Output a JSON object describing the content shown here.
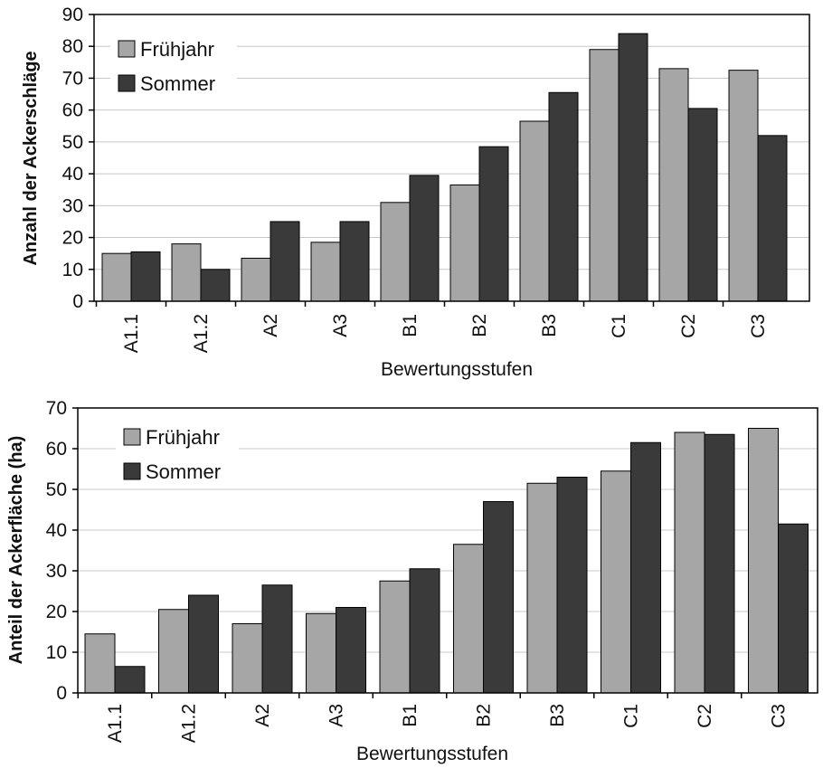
{
  "colors": {
    "fruehjahr": "#a6a6a6",
    "sommer": "#3a3a3a",
    "grid": "#c8c8c8",
    "axis": "#000000"
  },
  "chart_data": [
    {
      "type": "bar",
      "categories": [
        "A1.1",
        "A1.2",
        "A2",
        "A3",
        "B1",
        "B2",
        "B3",
        "C1",
        "C2",
        "C3"
      ],
      "series": [
        {
          "name": "Frühjahr",
          "values": [
            15,
            18,
            13.5,
            18.5,
            31,
            36.5,
            56.5,
            79,
            73,
            72.5
          ]
        },
        {
          "name": "Sommer",
          "values": [
            15.5,
            10,
            25,
            25,
            39.5,
            48.5,
            65.5,
            84,
            60.5,
            52
          ]
        }
      ],
      "xlabel": "Bewertungsstufen",
      "ylabel": "Anzahl der Ackerschläge",
      "ylim": [
        0,
        90
      ],
      "yticks": [
        0,
        10,
        20,
        30,
        40,
        50,
        60,
        70,
        80,
        90
      ],
      "grid": true,
      "legend": "top-left"
    },
    {
      "type": "bar",
      "categories": [
        "A1.1",
        "A1.2",
        "A2",
        "A3",
        "B1",
        "B2",
        "B3",
        "C1",
        "C2",
        "C3"
      ],
      "series": [
        {
          "name": "Frühjahr",
          "values": [
            14.5,
            20.5,
            17,
            19.5,
            27.5,
            36.5,
            51.5,
            54.5,
            64,
            65
          ]
        },
        {
          "name": "Sommer",
          "values": [
            6.5,
            24,
            26.5,
            21,
            30.5,
            47,
            53,
            61.5,
            63.5,
            41.5
          ]
        }
      ],
      "xlabel": "Bewertungsstufen",
      "ylabel": "Anteil der Ackerfläche (ha)",
      "ylim": [
        0,
        70
      ],
      "yticks": [
        0,
        10,
        20,
        30,
        40,
        50,
        60,
        70
      ],
      "grid": true,
      "legend": "top-left"
    }
  ]
}
